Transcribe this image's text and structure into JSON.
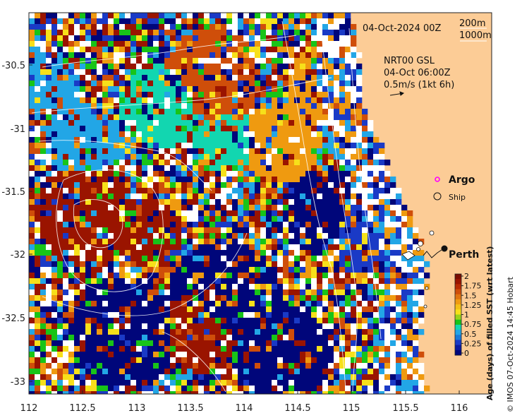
{
  "map": {
    "date_label": "04-Oct-2024 00Z",
    "depth_label_1": "200m",
    "depth_label_2": "1000m",
    "current_label_1": "NRT00 GSL",
    "current_label_2": "04-Oct 06:00Z",
    "current_label_3": "0.5m/s (1kt 6h)",
    "argo_label": "Argo",
    "ship_label": "Ship",
    "city_label": "Perth",
    "copyright": "© IMOS 07-Oct-2024 14:45 Hobart",
    "colorbar_title": "Age (days) of filled SST (wrt latest)",
    "colorbar_ticks": [
      "2",
      "1.75",
      "1.5",
      "1.25",
      "1",
      "0.75",
      "0.5",
      "0.25",
      "0"
    ],
    "x_ticks": [
      "112",
      "112.5",
      "113",
      "113.5",
      "114",
      "114.5",
      "115",
      "115.5",
      "116"
    ],
    "y_ticks": [
      "-30.5",
      "-31",
      "-31.5",
      "-32",
      "-32.5",
      "-33"
    ],
    "colors": {
      "land": "#fccc96",
      "age_2": "#9a1400",
      "age_1_75": "#cf4e0a",
      "age_1_5": "#ef9a10",
      "age_1_25": "#f7e01a",
      "age_1": "#18c418",
      "age_0_75": "#12d6b0",
      "age_0_5": "#22a6e6",
      "age_0_25": "#1a3ac6",
      "age_0": "#00067a",
      "argo": "#ff00ff"
    }
  }
}
